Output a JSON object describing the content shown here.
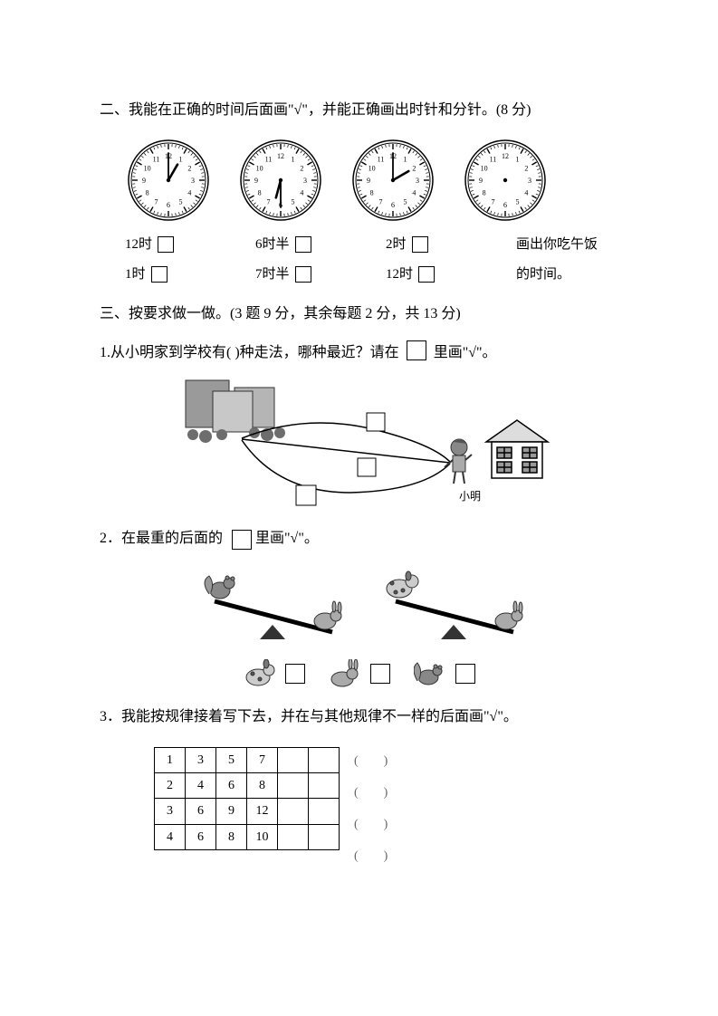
{
  "section2": {
    "title": "二、我能在正确的时间后面画\"√\"，并能正确画出时针和分针。(8 分)",
    "clocks": [
      {
        "hour": 1,
        "minute": 0
      },
      {
        "hour": 6,
        "minute": 30
      },
      {
        "hour": 2,
        "minute": 0
      },
      {
        "hour": null,
        "minute": null
      }
    ],
    "clock_style": {
      "radius": 44,
      "stroke": "#000000",
      "fill": "#ffffff",
      "tick_color": "#000000",
      "num_fontsize": 8,
      "hand_color": "#000000",
      "hour_len": 20,
      "min_len": 30
    },
    "options_col1": [
      "12时",
      "1时"
    ],
    "options_col2": [
      "6时半",
      "7时半"
    ],
    "options_col3": [
      "2时",
      "12时"
    ],
    "col4_line1": "画出你吃午饭",
    "col4_line2": "的时间。"
  },
  "section3": {
    "title": "三、按要求做一做。(3 题 9 分，其余每题 2 分，共 13 分)",
    "q1": {
      "text_a": "1.从小明家到学校有(",
      "text_b": ")种走法，哪种最近？请在",
      "text_c": "里画\"√\"。",
      "caption": "小明"
    },
    "q2": {
      "text_a": "2．在最重的后面的",
      "text_b": "里画\"√\"。",
      "animals": [
        {
          "emoji": "🐿️",
          "name": "squirrel"
        },
        {
          "emoji": "🐇",
          "name": "rabbit-2"
        },
        {
          "emoji": "🐿️",
          "name": "squirrel-2"
        }
      ]
    },
    "q3": {
      "text": "3．我能按规律接着写下去，并在与其他规律不一样的后面画\"√\"。",
      "rows": [
        [
          "1",
          "3",
          "5",
          "7",
          "",
          ""
        ],
        [
          "2",
          "4",
          "6",
          "8",
          "",
          ""
        ],
        [
          "3",
          "6",
          "9",
          "12",
          "",
          ""
        ],
        [
          "4",
          "6",
          "8",
          "10",
          "",
          ""
        ]
      ],
      "paren": "(　　)"
    }
  },
  "colors": {
    "text": "#000000",
    "background": "#ffffff",
    "border": "#000000",
    "faint": "#666666"
  }
}
